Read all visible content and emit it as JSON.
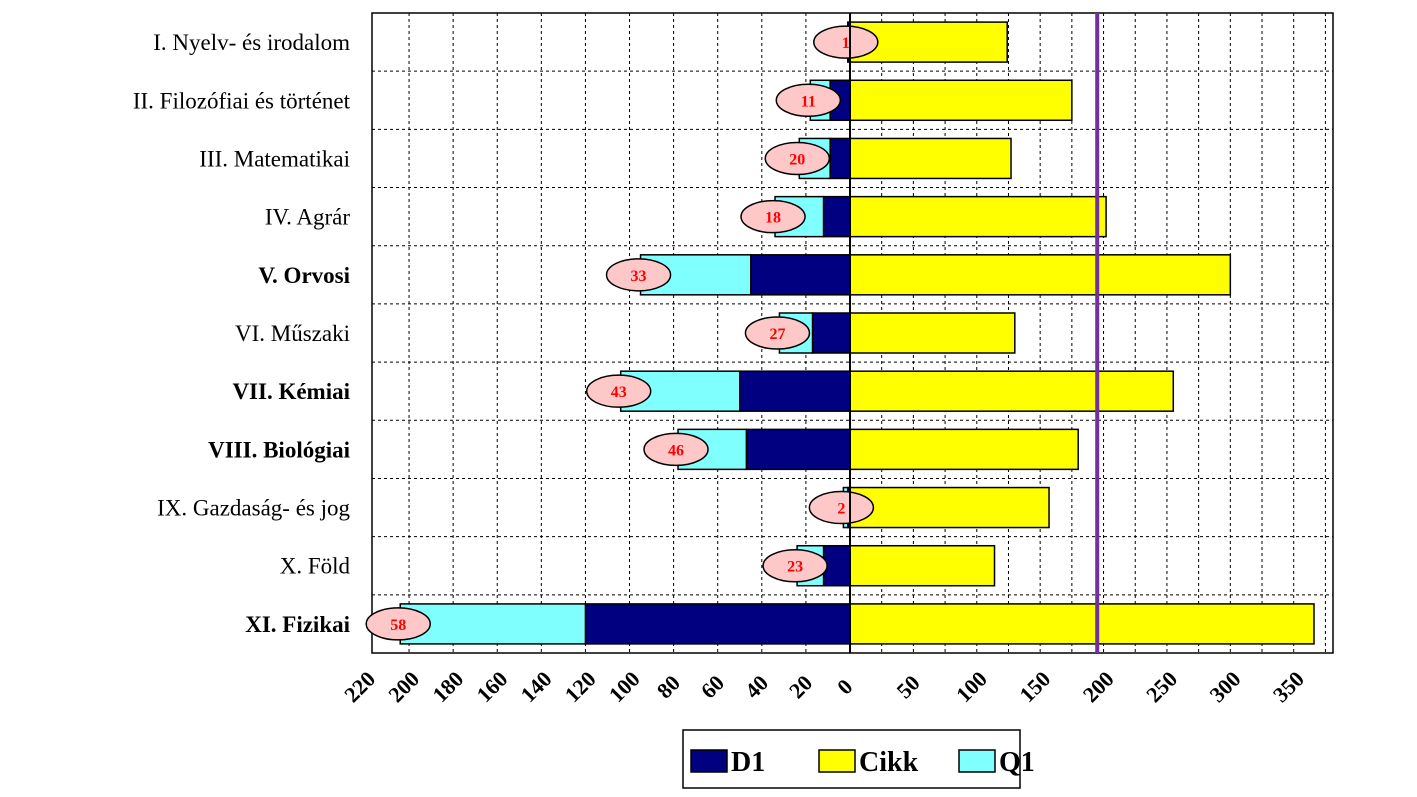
{
  "chart_data": {
    "type": "bar",
    "orientation": "horizontal",
    "categories": [
      "I. Nyelv- és irodalom",
      "II. Filozófiai és történet",
      "III. Matematikai",
      "IV. Agrár",
      "V. Orvosi",
      "VI. Műszaki",
      "VII. Kémiai",
      "VIII. Biológiai",
      "IX. Gazdaság- és jog",
      "X. Föld",
      "XI. Fizikai"
    ],
    "bold_categories": [
      "V. Orvosi",
      "VII. Kémiai",
      "VIII. Biológiai",
      "XI. Fizikai"
    ],
    "series": [
      {
        "name": "D1",
        "values": [
          1,
          9,
          9,
          12,
          45,
          17,
          50,
          47,
          1,
          12,
          120
        ],
        "color": "#000080",
        "side": "left"
      },
      {
        "name": "Q1",
        "values": [
          0,
          9,
          14,
          22,
          50,
          15,
          54,
          31,
          2,
          12,
          84
        ],
        "color": "#80ffff",
        "side": "left",
        "stacked_on": "D1"
      },
      {
        "name": "Cikk",
        "values": [
          124,
          175,
          127,
          202,
          300,
          130,
          255,
          180,
          157,
          114,
          366
        ],
        "color": "#ffff00",
        "side": "right"
      }
    ],
    "badges": [
      1,
      11,
      20,
      18,
      33,
      27,
      43,
      46,
      2,
      23,
      58
    ],
    "left_axis": {
      "ticks": [
        220,
        200,
        180,
        160,
        140,
        120,
        100,
        80,
        60,
        40,
        20,
        0
      ],
      "range": [
        0,
        210
      ]
    },
    "right_axis": {
      "ticks": [
        0,
        50,
        100,
        150,
        200,
        250,
        300,
        350
      ],
      "range": [
        0,
        366
      ]
    },
    "reference_line": {
      "axis": "right",
      "value": 195,
      "color": "#7030a0"
    },
    "grid": true,
    "legend": {
      "position": "bottom",
      "items": [
        "D1",
        "Cikk",
        "Q1"
      ]
    },
    "title": "",
    "xlabel": "",
    "ylabel": ""
  }
}
